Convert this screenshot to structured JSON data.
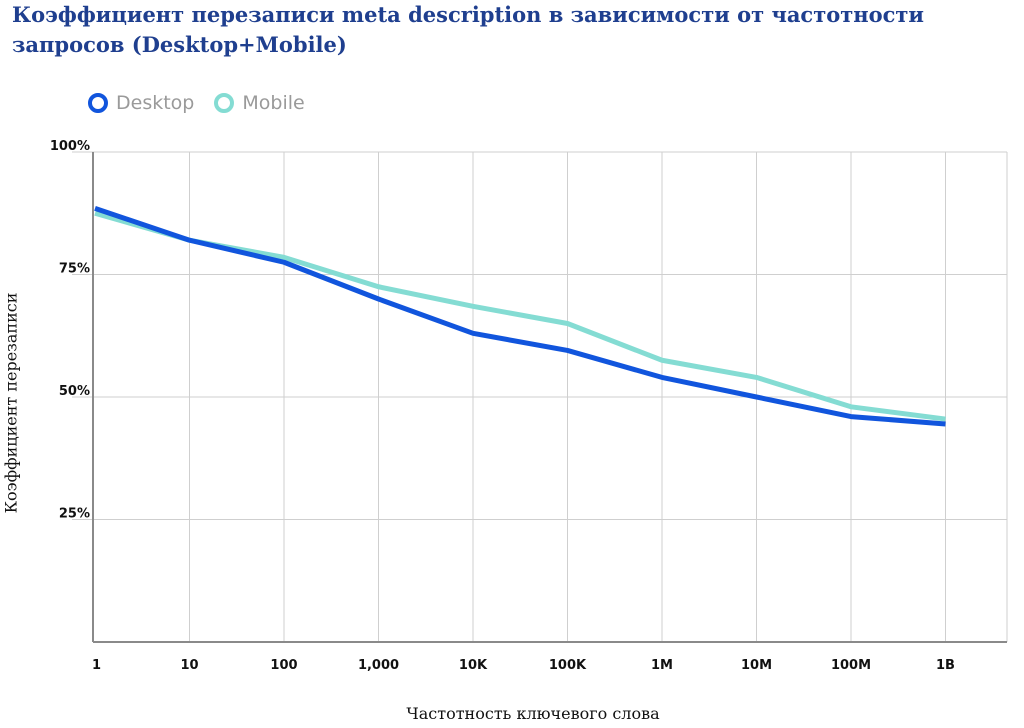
{
  "chart_data": {
    "type": "line",
    "title": "Коэффициент перезаписи meta description в зависимости от частотности запросов (Desktop+Mobile)",
    "xlabel": "Частотность ключевого слова",
    "ylabel": "Коэффициент перезаписи",
    "categories": [
      "1",
      "10",
      "100",
      "1,000",
      "10K",
      "100K",
      "1M",
      "10M",
      "100M",
      "1B"
    ],
    "yticks": [
      "100%",
      "75%",
      "50%",
      "25%"
    ],
    "ylim": [
      0,
      100
    ],
    "grid": true,
    "legend_position": "top-left",
    "series": [
      {
        "name": "Desktop",
        "color": "#1155dd",
        "values": [
          88.5,
          82,
          77.5,
          70,
          63,
          59.5,
          54,
          50,
          46,
          44.5
        ]
      },
      {
        "name": "Mobile",
        "color": "#84dcd3",
        "values": [
          87.5,
          82,
          78.5,
          72.5,
          68.5,
          65,
          57.5,
          54,
          48,
          45.5
        ]
      }
    ]
  }
}
